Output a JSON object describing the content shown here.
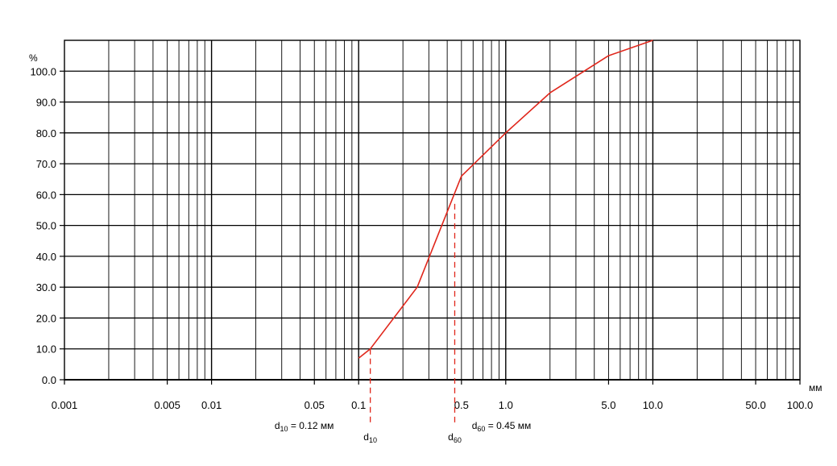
{
  "chart_data": {
    "type": "line",
    "x_scale": "log",
    "xlim": [
      0.001,
      100.0
    ],
    "ylim": [
      0,
      110
    ],
    "ylabel": "%",
    "xlabel": "мм",
    "grid": true,
    "x_tick_values": [
      0.001,
      0.005,
      0.01,
      0.05,
      0.1,
      0.5,
      1.0,
      5.0,
      10.0,
      50.0,
      100.0
    ],
    "x_tick_labels": [
      "0.001",
      "0.005",
      "0.01",
      "0.05",
      "0.1",
      "0.5",
      "1.0",
      "5.0",
      "10.0",
      "50.0",
      "100.0"
    ],
    "y_tick_values": [
      0,
      10,
      20,
      30,
      40,
      50,
      60,
      70,
      80,
      90,
      100
    ],
    "y_tick_labels": [
      "0.0",
      "10.0",
      "20.0",
      "30.0",
      "40.0",
      "50.0",
      "60.0",
      "70.0",
      "80.0",
      "90.0",
      "100.0"
    ],
    "series": [
      {
        "color": "#e0261b",
        "x": [
          0.1,
          0.12,
          0.25,
          0.5,
          1.0,
          2.0,
          5.0,
          10.0
        ],
        "y": [
          7,
          10,
          30,
          66,
          80,
          93,
          105,
          110
        ]
      }
    ],
    "markers": [
      {
        "x": 0.12,
        "y": 10,
        "sub": "10",
        "label": "d10 = 0.12 мм",
        "label_prefix": "d",
        "label_sub": "10",
        "label_suffix": " = 0.12 мм"
      },
      {
        "x": 0.45,
        "y": 57,
        "sub": "60",
        "label": "d60 = 0.45 мм",
        "label_prefix": "d",
        "label_sub": "60",
        "label_suffix": " = 0.45 мм"
      }
    ]
  }
}
